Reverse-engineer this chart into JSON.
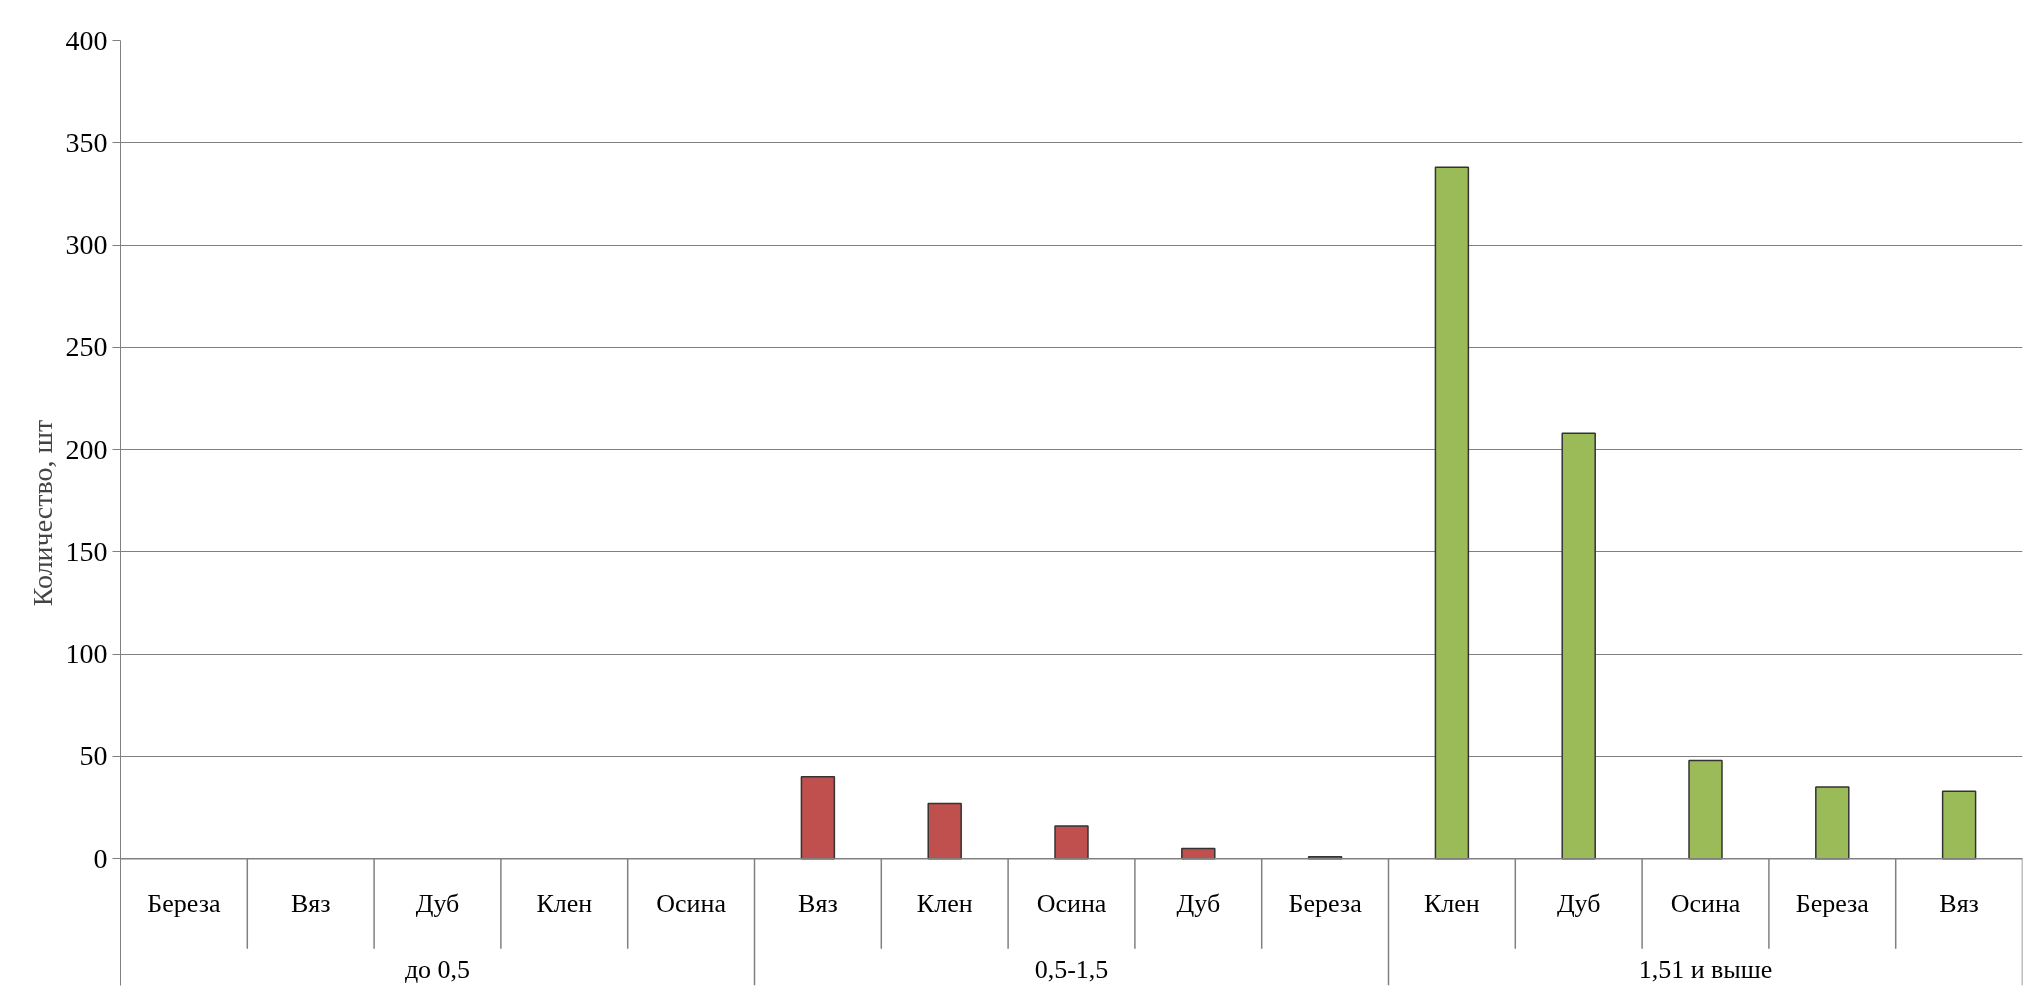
{
  "chart_data": {
    "type": "bar",
    "ylabel": "Количество, шт",
    "categories": [
      "Береза",
      "Вяз",
      "Дуб",
      "Клен",
      "Осина",
      "Вяз",
      "Клен",
      "Осина",
      "Дуб",
      "Береза",
      "Клен",
      "Дуб",
      "Осина",
      "Береза",
      "Вяз"
    ],
    "values": [
      null,
      null,
      null,
      null,
      null,
      40,
      27,
      16,
      5,
      1,
      338,
      208,
      48,
      35,
      33
    ],
    "colors": [
      null,
      null,
      null,
      null,
      null,
      "#c0504d",
      "#c0504d",
      "#c0504d",
      "#c0504d",
      "#c0504d",
      "#9bbb59",
      "#9bbb59",
      "#9bbb59",
      "#9bbb59",
      "#9bbb59"
    ],
    "annotations": [
      "до 0,5",
      "0,5-1,5",
      "1,51 и выше"
    ],
    "ylim": [
      0,
      400
    ],
    "yticks": [
      0,
      50,
      100,
      150,
      200,
      250,
      300,
      350,
      400
    ],
    "grid": "y"
  }
}
